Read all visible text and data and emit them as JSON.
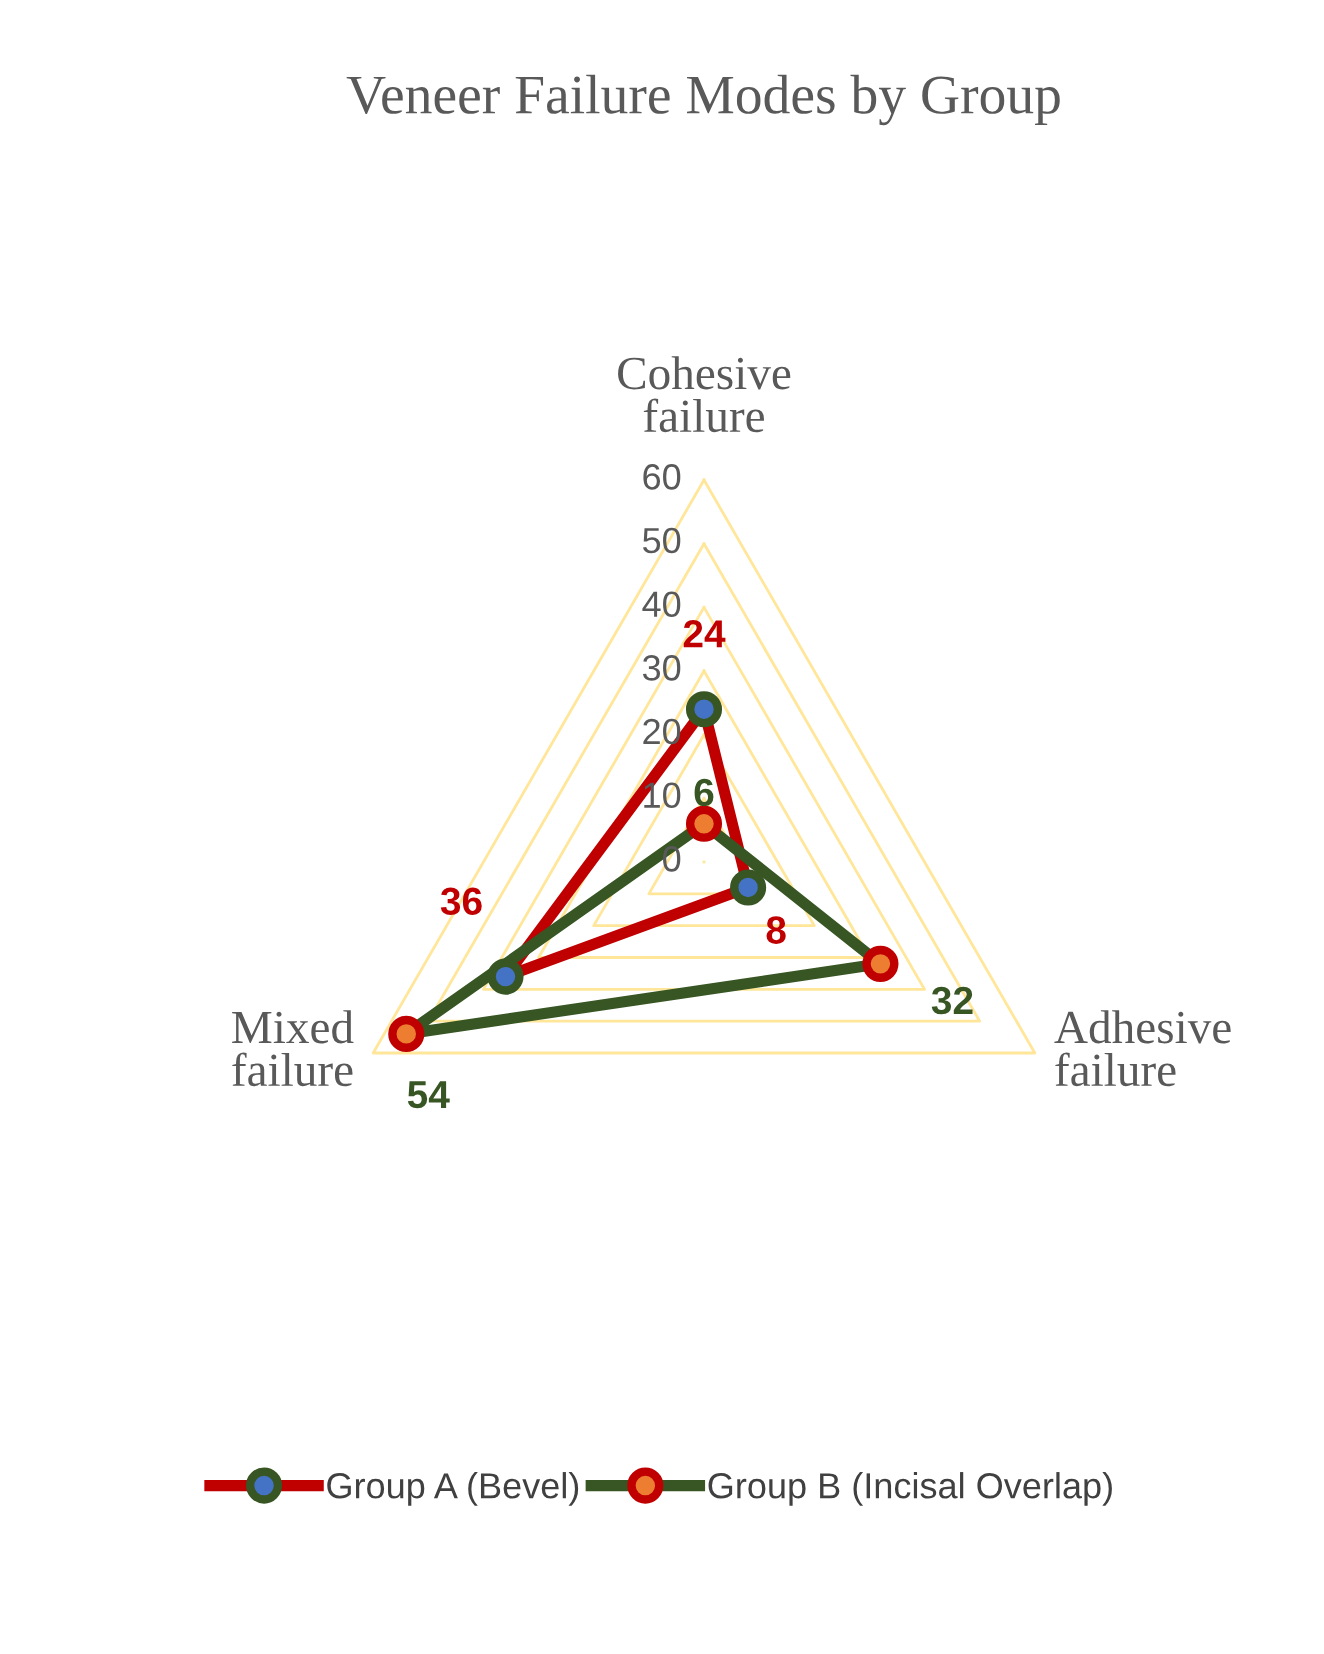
{
  "chart_data": {
    "type": "radar",
    "title": "Veneer Failure Modes by Group",
    "categories": [
      "Cohesive failure",
      "Adhesive failure",
      "Mixed failure"
    ],
    "series": [
      {
        "name": "Group A (Bevel)",
        "color": "#c00000",
        "values": [
          24,
          8,
          36
        ]
      },
      {
        "name": "Group B (Incisal Overlap)",
        "color": "#375623",
        "values": [
          6,
          32,
          54
        ]
      }
    ],
    "ylim": [
      0,
      60
    ],
    "yticks": [
      0,
      10,
      20,
      30,
      40,
      50,
      60
    ],
    "data_labels": true,
    "marker": "circle",
    "line_style": "solid",
    "grid": true,
    "legend": "bottom"
  }
}
